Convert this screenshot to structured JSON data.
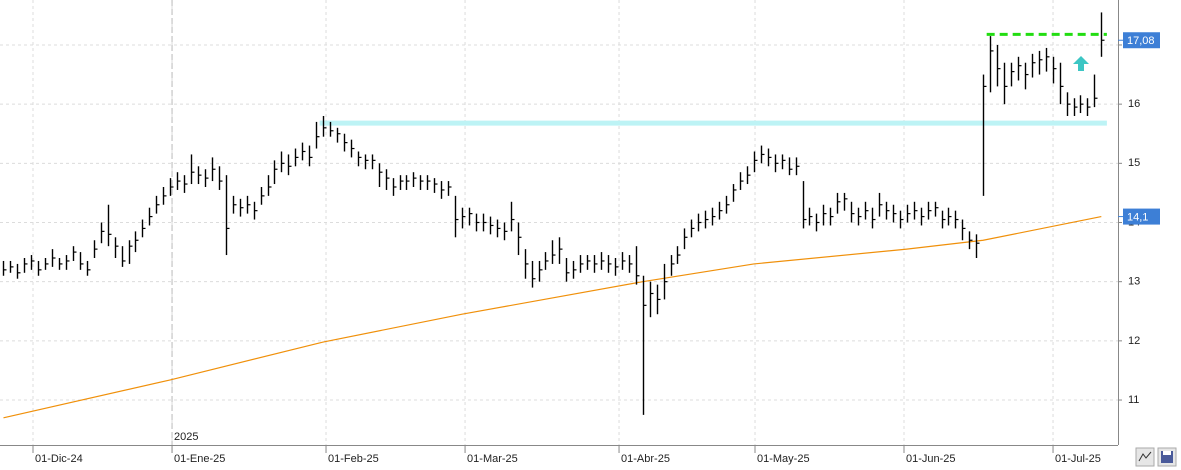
{
  "chart_data": {
    "type": "ohlc",
    "bars": {
      "color": "#000000",
      "x": [
        0,
        1,
        2,
        3,
        4,
        5,
        6,
        7,
        8,
        9,
        10,
        11,
        12,
        13,
        14,
        15,
        16,
        17,
        18,
        19,
        20,
        21,
        22,
        23,
        24,
        25,
        26,
        27,
        28,
        29,
        30,
        31,
        32,
        33,
        34,
        35,
        36,
        37,
        38,
        39,
        40,
        41,
        42,
        43,
        44,
        45,
        46,
        47,
        48,
        49,
        50,
        51,
        52,
        53,
        54,
        55,
        56,
        57,
        58,
        59,
        60,
        61,
        62,
        63,
        64,
        65,
        66,
        67,
        68,
        69,
        70,
        71,
        72,
        73,
        74,
        75,
        76,
        77,
        78,
        79,
        80,
        81,
        82,
        83,
        84,
        85,
        86,
        87,
        88,
        89,
        90,
        91,
        92,
        93,
        94,
        95,
        96,
        97,
        98,
        99,
        100,
        101,
        102,
        103,
        104,
        105,
        106,
        107,
        108,
        109,
        110,
        111,
        112,
        113,
        114,
        115,
        116,
        117,
        118,
        119,
        120,
        121,
        122,
        123,
        124,
        125,
        126,
        127,
        128,
        129,
        130,
        131,
        132,
        133,
        134,
        135,
        136,
        137,
        138,
        139,
        140,
        141,
        142,
        143,
        144,
        145,
        146,
        147,
        148,
        149,
        150,
        151,
        152,
        153,
        154,
        155,
        156,
        157,
        158
      ],
      "high": [
        13.35,
        13.35,
        13.3,
        13.4,
        13.45,
        13.35,
        13.4,
        13.55,
        13.4,
        13.45,
        13.6,
        13.5,
        13.35,
        13.7,
        14.0,
        14.3,
        13.75,
        13.6,
        13.7,
        13.85,
        14.05,
        14.25,
        14.45,
        14.6,
        14.75,
        14.85,
        14.8,
        15.15,
        14.95,
        14.9,
        15.1,
        14.95,
        14.8,
        14.45,
        14.4,
        14.45,
        14.35,
        14.6,
        14.8,
        15.05,
        15.2,
        15.15,
        15.25,
        15.35,
        15.3,
        15.7,
        15.8,
        15.7,
        15.6,
        15.5,
        15.4,
        15.2,
        15.15,
        15.15,
        15.0,
        14.9,
        14.75,
        14.8,
        14.8,
        14.85,
        14.8,
        14.8,
        14.75,
        14.7,
        14.7,
        14.45,
        14.25,
        14.25,
        14.15,
        14.15,
        14.1,
        14.05,
        14.0,
        14.35,
        14.0,
        13.55,
        13.35,
        13.35,
        13.5,
        13.7,
        13.75,
        13.4,
        13.35,
        13.45,
        13.45,
        13.45,
        13.5,
        13.45,
        13.4,
        13.5,
        13.45,
        13.6,
        13.1,
        13.0,
        12.95,
        13.3,
        13.45,
        13.6,
        13.9,
        14.05,
        14.15,
        14.2,
        14.25,
        14.35,
        14.45,
        14.65,
        14.85,
        14.95,
        15.2,
        15.3,
        15.25,
        15.15,
        15.15,
        15.1,
        15.1,
        14.7,
        14.25,
        14.15,
        14.3,
        14.25,
        14.5,
        14.5,
        14.35,
        14.25,
        14.35,
        14.25,
        14.5,
        14.35,
        14.3,
        14.2,
        14.3,
        14.35,
        14.25,
        14.35,
        14.35,
        14.2,
        14.25,
        14.2,
        14.05,
        13.85,
        13.8,
        16.5,
        17.15,
        17.0,
        16.7,
        16.7,
        16.8,
        16.7,
        16.85,
        16.9,
        16.95,
        16.8,
        16.7,
        16.2,
        16.1,
        16.15,
        16.1,
        16.5,
        17.55
      ],
      "low": [
        13.1,
        13.15,
        13.05,
        13.15,
        13.2,
        13.1,
        13.2,
        13.25,
        13.2,
        13.2,
        13.35,
        13.2,
        13.1,
        13.4,
        13.65,
        13.6,
        13.4,
        13.25,
        13.3,
        13.5,
        13.75,
        13.95,
        14.15,
        14.3,
        14.45,
        14.55,
        14.5,
        14.65,
        14.65,
        14.6,
        14.7,
        14.55,
        13.45,
        14.15,
        14.1,
        14.15,
        14.05,
        14.3,
        14.45,
        14.65,
        14.85,
        14.8,
        14.95,
        15.05,
        14.95,
        15.25,
        15.45,
        15.45,
        15.35,
        15.2,
        15.1,
        14.95,
        14.9,
        14.9,
        14.6,
        14.55,
        14.45,
        14.55,
        14.55,
        14.6,
        14.55,
        14.55,
        14.5,
        14.4,
        14.45,
        13.75,
        13.9,
        13.95,
        13.85,
        13.85,
        13.8,
        13.75,
        13.7,
        13.85,
        13.45,
        13.05,
        12.9,
        13.0,
        13.2,
        13.3,
        13.3,
        13.0,
        13.05,
        13.15,
        13.2,
        13.15,
        13.2,
        13.15,
        13.1,
        13.2,
        13.15,
        12.95,
        10.75,
        12.4,
        12.45,
        12.7,
        13.1,
        13.3,
        13.55,
        13.75,
        13.85,
        13.9,
        13.95,
        14.05,
        14.15,
        14.35,
        14.55,
        14.65,
        14.85,
        15.0,
        14.95,
        14.85,
        14.9,
        14.8,
        14.8,
        13.9,
        13.95,
        13.85,
        13.95,
        13.95,
        14.15,
        14.2,
        14.0,
        13.95,
        14.05,
        13.9,
        14.1,
        14.05,
        14.0,
        13.9,
        14.0,
        14.05,
        13.95,
        14.05,
        14.1,
        13.9,
        13.95,
        13.9,
        13.7,
        13.55,
        13.4,
        14.45,
        16.2,
        16.3,
        16.0,
        16.3,
        16.4,
        16.25,
        16.45,
        16.5,
        16.55,
        16.35,
        16.0,
        15.8,
        15.8,
        15.85,
        15.8,
        15.95,
        16.8
      ],
      "close": [
        13.2,
        13.25,
        13.15,
        13.3,
        13.35,
        13.2,
        13.3,
        13.4,
        13.3,
        13.35,
        13.5,
        13.3,
        13.2,
        13.55,
        13.85,
        13.8,
        13.6,
        13.35,
        13.6,
        13.7,
        13.9,
        14.1,
        14.3,
        14.45,
        14.6,
        14.7,
        14.65,
        14.85,
        14.8,
        14.75,
        14.9,
        14.7,
        13.9,
        14.3,
        14.25,
        14.3,
        14.2,
        14.45,
        14.6,
        14.9,
        15.0,
        14.95,
        15.1,
        15.2,
        15.1,
        15.45,
        15.6,
        15.55,
        15.5,
        15.35,
        15.25,
        15.1,
        15.05,
        15.05,
        14.85,
        14.75,
        14.6,
        14.7,
        14.7,
        14.75,
        14.7,
        14.7,
        14.65,
        14.55,
        14.6,
        14.05,
        14.1,
        14.15,
        14.0,
        14.0,
        13.95,
        13.9,
        13.85,
        14.05,
        13.75,
        13.3,
        13.05,
        13.2,
        13.35,
        13.45,
        13.55,
        13.15,
        13.2,
        13.3,
        13.35,
        13.3,
        13.35,
        13.3,
        13.25,
        13.35,
        13.3,
        13.1,
        12.6,
        12.8,
        12.7,
        13.0,
        13.3,
        13.45,
        13.75,
        13.9,
        14.0,
        14.05,
        14.1,
        14.2,
        14.3,
        14.55,
        14.7,
        14.8,
        15.05,
        15.15,
        15.1,
        15.0,
        15.05,
        14.9,
        14.95,
        14.05,
        14.1,
        14.0,
        14.15,
        14.1,
        14.35,
        14.4,
        14.15,
        14.1,
        14.2,
        14.05,
        14.3,
        14.2,
        14.15,
        14.05,
        14.15,
        14.2,
        14.1,
        14.2,
        14.25,
        14.05,
        14.1,
        14.05,
        13.9,
        13.7,
        13.65,
        16.3,
        16.9,
        16.6,
        16.3,
        16.55,
        16.65,
        16.5,
        16.7,
        16.75,
        16.8,
        16.6,
        16.3,
        16.0,
        15.95,
        16.0,
        15.95,
        16.1,
        17.08
      ]
    },
    "ma": {
      "color": "#f0900a",
      "x": [
        0,
        24,
        46,
        66,
        92,
        108,
        130,
        141,
        158
      ],
      "values": [
        10.7,
        11.34,
        11.98,
        12.45,
        13.0,
        13.3,
        13.55,
        13.7,
        14.1
      ]
    },
    "levels": [
      {
        "value": 15.68,
        "x": [
          45.5,
          158.8
        ],
        "color": "#bdf3f5",
        "dashed": false
      },
      {
        "value": 17.18,
        "x": [
          141.5,
          158.8
        ],
        "color": "#22dd11",
        "dashed": true
      }
    ],
    "price_labels": [
      {
        "value": 17.08,
        "label": "17,08"
      },
      {
        "value": 14.1,
        "label": "14,1"
      }
    ],
    "year_marker": {
      "value": 24.26,
      "label": "2025"
    },
    "xlim": [
      -0.5,
      160.4
    ],
    "xticks": [
      {
        "value": 4.25,
        "label": "01-Dic-24"
      },
      {
        "value": 24.26,
        "label": "01-Ene-25"
      },
      {
        "value": 46.42,
        "label": "01-Feb-25"
      },
      {
        "value": 66.43,
        "label": "01-Mar-25"
      },
      {
        "value": 88.59,
        "label": "01-Abr-25"
      },
      {
        "value": 108.16,
        "label": "01-May-25"
      },
      {
        "value": 129.6,
        "label": "01-Jun-25"
      },
      {
        "value": 151.05,
        "label": "01-Jul-25"
      }
    ],
    "ylim": [
      10.24,
      17.76
    ],
    "yticks": [
      11,
      12,
      13,
      14,
      15,
      16,
      17
    ],
    "grid": true
  }
}
